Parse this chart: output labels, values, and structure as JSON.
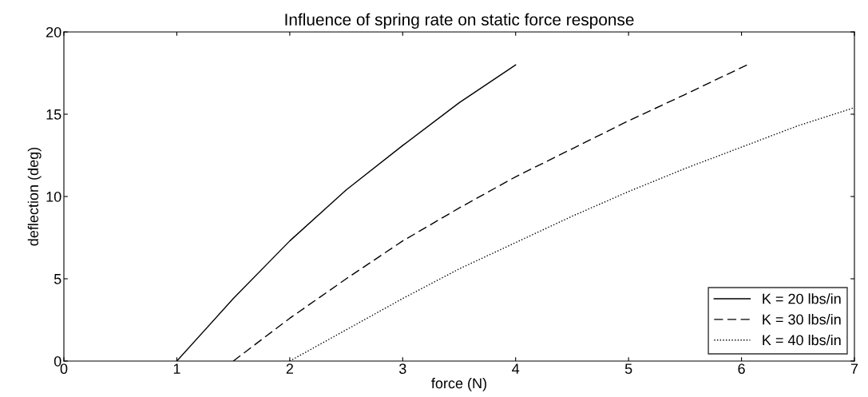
{
  "chart_data": {
    "type": "line",
    "title": "Influence of spring rate on static force response",
    "xlabel": "force (N)",
    "ylabel": "deflection (deg)",
    "xlim": [
      0,
      7
    ],
    "xticks": [
      0,
      1,
      2,
      3,
      4,
      5,
      6,
      7
    ],
    "ylim": [
      0,
      20
    ],
    "yticks": [
      0,
      5,
      10,
      15,
      20
    ],
    "grid": false,
    "legend": "bottom right",
    "series": [
      {
        "name": "K = 20 lbs/in",
        "color": "#000000",
        "line_style": "solid",
        "x": [
          1,
          1.5,
          2,
          2.5,
          3,
          3.5,
          4
        ],
        "values": [
          0,
          3.8,
          7.3,
          10.4,
          13.1,
          15.7,
          18
        ]
      },
      {
        "name": "K = 30 lbs/in",
        "color": "#000000",
        "line_style": "dashed",
        "x": [
          1.5,
          2,
          2.5,
          3,
          3.5,
          4,
          4.5,
          5,
          5.5,
          6.05
        ],
        "values": [
          0,
          2.6,
          5.0,
          7.3,
          9.3,
          11.2,
          12.9,
          14.6,
          16.2,
          18
        ]
      },
      {
        "name": "K = 40 lbs/in",
        "color": "#000000",
        "line_style": "dotted",
        "x": [
          2,
          2.5,
          3,
          3.5,
          4,
          4.5,
          5,
          5.5,
          6,
          6.5,
          7
        ],
        "values": [
          0,
          1.9,
          3.8,
          5.6,
          7.2,
          8.8,
          10.3,
          11.7,
          13.0,
          14.3,
          15.4
        ]
      }
    ]
  }
}
